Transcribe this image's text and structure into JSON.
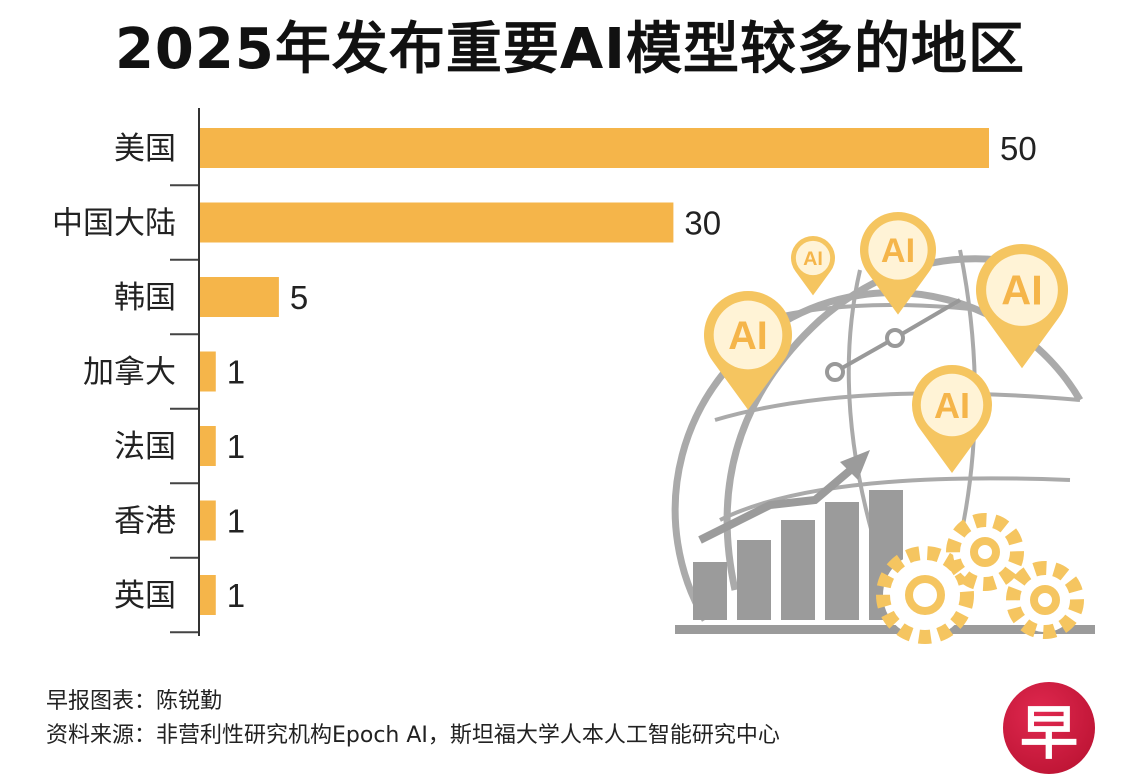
{
  "chart_data": {
    "type": "bar",
    "orientation": "horizontal",
    "title": "2025年发布重要AI模型较多的地区",
    "categories": [
      "美国",
      "中国大陆",
      "韩国",
      "加拿大",
      "法国",
      "香港",
      "英国"
    ],
    "values": [
      50,
      30,
      5,
      1,
      1,
      1,
      1
    ],
    "xlim": [
      0,
      50
    ],
    "grid": false,
    "bar_color": "#F5B54A",
    "data_labels": true
  },
  "credits": {
    "author": "早报图表：陈锐勤",
    "source": "资料来源：非营利性研究机构Epoch AI，斯坦福大学人本人工智能研究中心"
  },
  "illustration": {
    "pin_label": "AI"
  },
  "logo": {
    "text": "早",
    "color": "#C8173A"
  }
}
